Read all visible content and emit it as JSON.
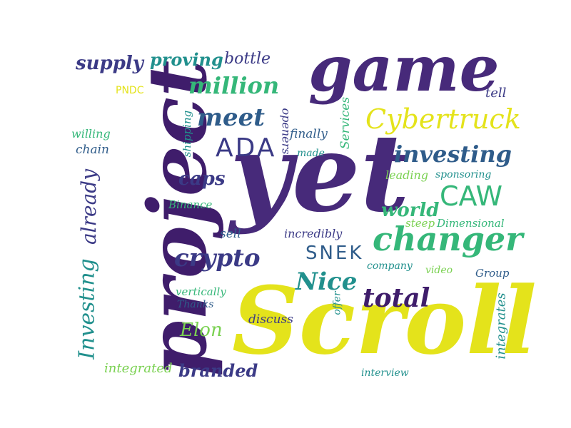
{
  "colors": {
    "dark_purple": "#3f1d6b",
    "purple": "#472a7a",
    "indigo": "#3b3a86",
    "blue": "#2f5c8a",
    "teal": "#21908d",
    "green": "#35b779",
    "light_green": "#7ad151",
    "yellow": "#e4e31b"
  },
  "words": {
    "scroll": "Scroll",
    "yet": "yet",
    "project": "project",
    "game": "game",
    "changer": "changer",
    "cybertruck": "Cybertruck",
    "investing": "investing",
    "investing_cap": "Investing",
    "already": "already",
    "crypto": "crypto",
    "million": "million",
    "meet": "meet",
    "ada": "ADA",
    "caw": "CAW",
    "nice": "Nice",
    "total": "total",
    "snek": "SNEK",
    "supply": "supply",
    "proving": "proving",
    "bottle": "bottle",
    "pndc": "PNDC",
    "tell": "tell",
    "willing": "willing",
    "chain": "chain",
    "shipping": "shipping",
    "openers": "openers",
    "finally": "finally",
    "made": "made",
    "services": "Services",
    "caps": "caps",
    "leading": "leading",
    "sponsoring": "sponsoring",
    "binance": "Binance",
    "world": "world",
    "steep": "steep",
    "dimensional": "Dimensional",
    "sell": "sell",
    "incredibly": "incredibly",
    "company": "company",
    "video": "video",
    "group": "Group",
    "vertically": "vertically",
    "thanks": "Thanks",
    "offer": "offer",
    "discuss": "discuss",
    "integrates": "integrates",
    "elon": "Elon",
    "integrated": "integrated",
    "branded": "branded",
    "interview": "interview"
  }
}
